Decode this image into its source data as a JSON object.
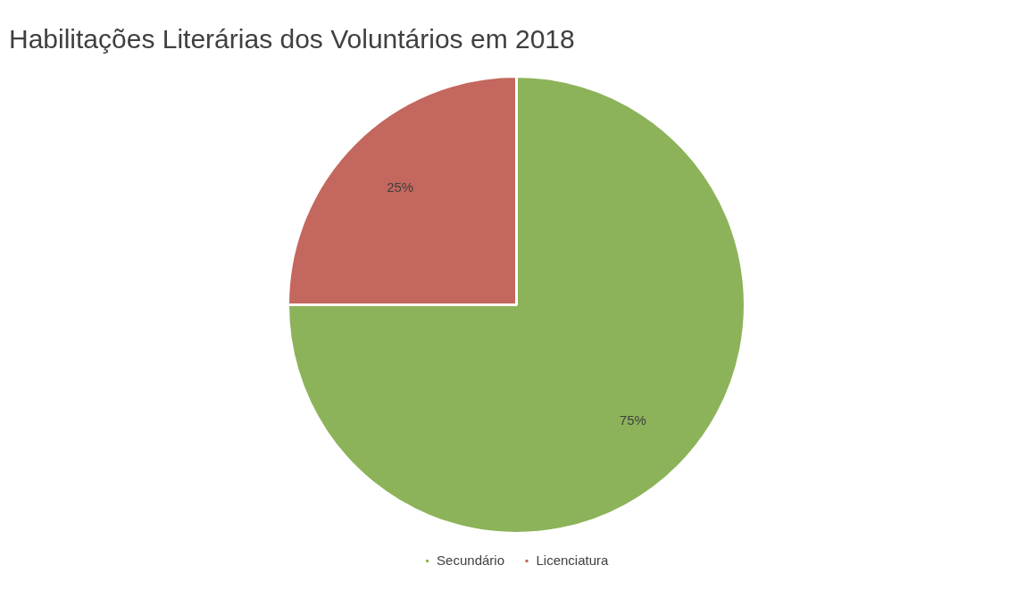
{
  "chart_data": {
    "type": "pie",
    "title": "Habilitações Literárias dos Voluntários em 2018",
    "categories": [
      "Secundário",
      "Licenciatura"
    ],
    "values": [
      75,
      25
    ],
    "colors": [
      "#8db35a",
      "#c4675e"
    ],
    "value_labels": [
      "75%",
      "25%"
    ],
    "legend": "bottom"
  }
}
